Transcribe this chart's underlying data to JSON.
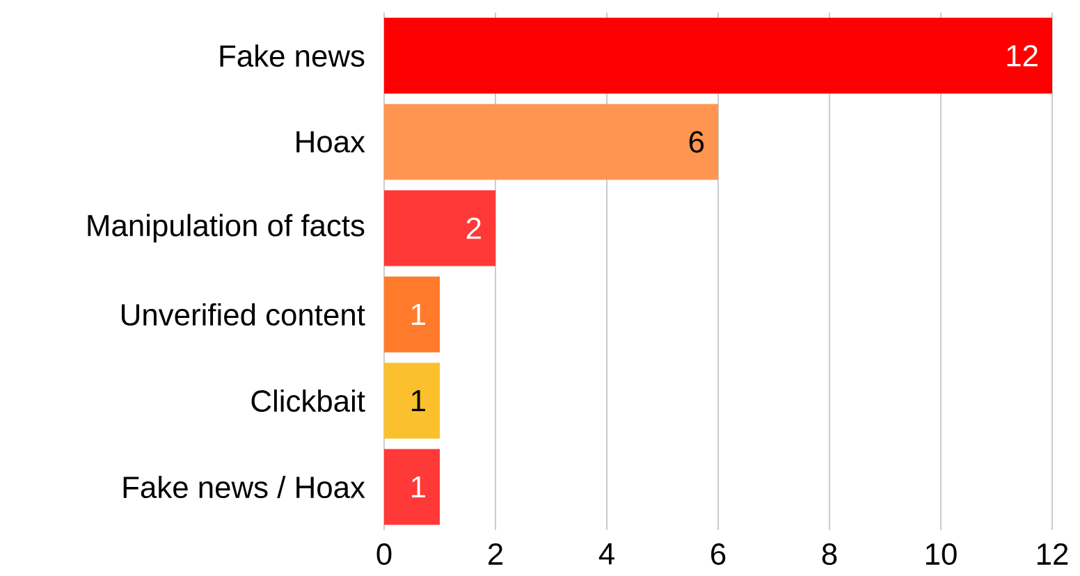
{
  "chart_data": {
    "type": "bar",
    "orientation": "horizontal",
    "categories": [
      "Fake news",
      "Hoax",
      "Manipulation of facts",
      "Unverified content",
      "Clickbait",
      "Fake news / Hoax"
    ],
    "values": [
      12,
      6,
      2,
      1,
      1,
      1
    ],
    "value_labels": [
      "12",
      "6",
      "2",
      "1",
      "1",
      "1"
    ],
    "colors": [
      "#ff0000",
      "#ff9550",
      "#ff3838",
      "#ff7b2b",
      "#fbc02d",
      "#ff3838"
    ],
    "xlim": [
      0,
      12
    ],
    "xticks": [
      0,
      2,
      4,
      6,
      8,
      10,
      12
    ],
    "grid": "x"
  }
}
